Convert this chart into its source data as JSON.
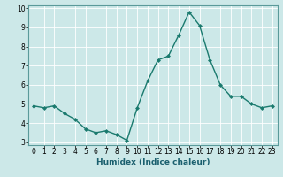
{
  "x": [
    0,
    1,
    2,
    3,
    4,
    5,
    6,
    7,
    8,
    9,
    10,
    11,
    12,
    13,
    14,
    15,
    16,
    17,
    18,
    19,
    20,
    21,
    22,
    23
  ],
  "y": [
    4.9,
    4.8,
    4.9,
    4.5,
    4.2,
    3.7,
    3.5,
    3.6,
    3.4,
    3.1,
    4.8,
    6.2,
    7.3,
    7.5,
    8.6,
    9.8,
    9.1,
    7.3,
    6.0,
    5.4,
    5.4,
    5.0,
    4.8,
    4.9
  ],
  "xlabel": "Humidex (Indice chaleur)",
  "xlim": [
    -0.5,
    23.5
  ],
  "ylim": [
    2.85,
    10.15
  ],
  "yticks": [
    3,
    4,
    5,
    6,
    7,
    8,
    9,
    10
  ],
  "xticks": [
    0,
    1,
    2,
    3,
    4,
    5,
    6,
    7,
    8,
    9,
    10,
    11,
    12,
    13,
    14,
    15,
    16,
    17,
    18,
    19,
    20,
    21,
    22,
    23
  ],
  "line_color": "#1a7a6e",
  "marker": "D",
  "marker_size": 2.0,
  "bg_color": "#cce8e8",
  "grid_color": "#ffffff",
  "xlabel_fontsize": 6.5,
  "tick_fontsize": 5.5,
  "line_width": 1.0,
  "spine_color": "#5a9a9a"
}
